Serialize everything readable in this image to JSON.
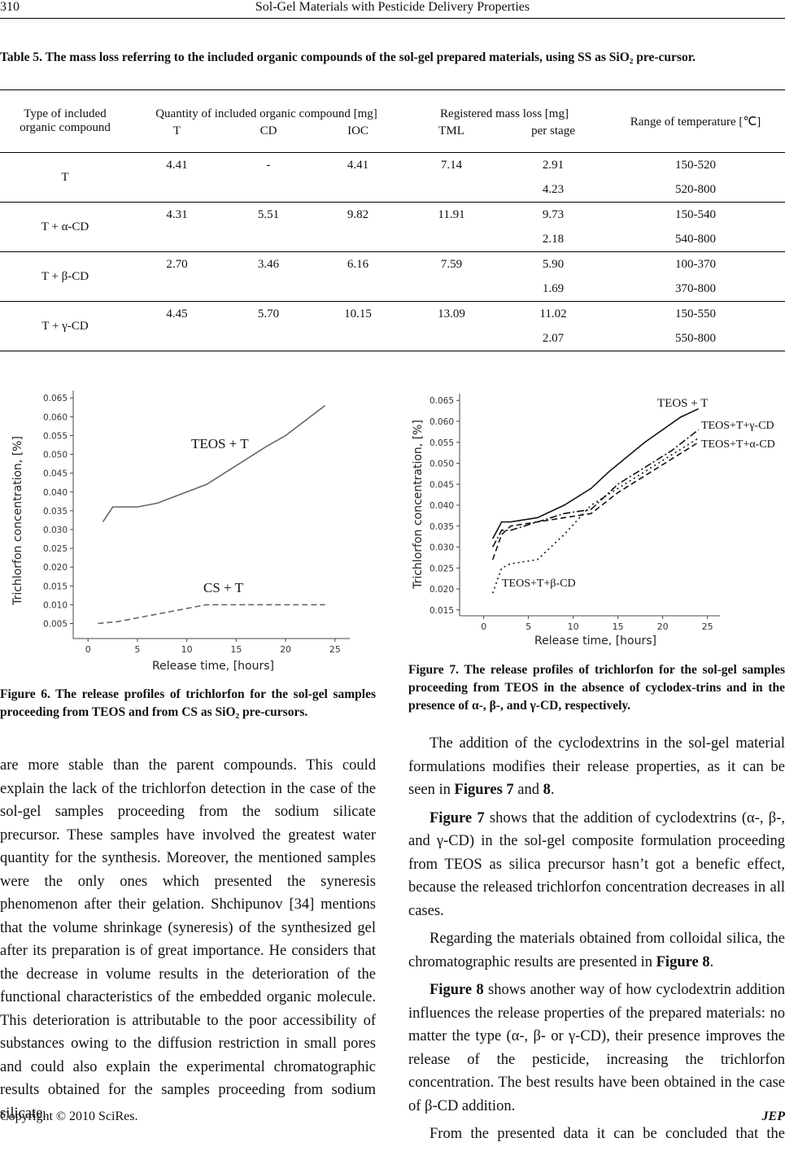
{
  "header": {
    "page_number": "310",
    "running_title": "Sol-Gel Materials with Pesticide Delivery Properties"
  },
  "table": {
    "caption": "Table 5. The mass loss referring to the included organic compounds of the sol-gel prepared materials, using SS as SiO₂ pre-cursor.",
    "header": {
      "type": "Type of included organic compound",
      "quantity": "Quantity of included organic compound [mg]",
      "mass_loss": "Registered mass loss [mg]",
      "range": "Range of temperature [℃]",
      "T": "T",
      "CD": "CD",
      "IOC": "IOC",
      "TML": "TML",
      "per_stage": "per stage"
    },
    "rows": [
      {
        "type": "T",
        "T": "4.41",
        "CD": "-",
        "IOC": "4.41",
        "TML": "7.14",
        "per_stage": [
          "2.91",
          "4.23"
        ],
        "range": [
          "150-520",
          "520-800"
        ]
      },
      {
        "type": "T + α-CD",
        "T": "4.31",
        "CD": "5.51",
        "IOC": "9.82",
        "TML": "11.91",
        "per_stage": [
          "9.73",
          "2.18"
        ],
        "range": [
          "150-540",
          "540-800"
        ]
      },
      {
        "type": "T + β-CD",
        "T": "2.70",
        "CD": "3.46",
        "IOC": "6.16",
        "TML": "7.59",
        "per_stage": [
          "5.90",
          "1.69"
        ],
        "range": [
          "100-370",
          "370-800"
        ]
      },
      {
        "type": "T + γ-CD",
        "T": "4.45",
        "CD": "5.70",
        "IOC": "10.15",
        "TML": "13.09",
        "per_stage": [
          "11.02",
          "2.07"
        ],
        "range": [
          "150-550",
          "550-800"
        ]
      }
    ]
  },
  "figure6": {
    "caption": "Figure 6. The release profiles of trichlorfon for the sol-gel samples proceeding from TEOS and from CS as SiO₂ pre-cursors.",
    "chart": {
      "type": "line",
      "x_label": "Release time, [hours]",
      "y_label": "Trichlorfon concentration, [%]",
      "xlim": [
        -1.5,
        26.5
      ],
      "ylim": [
        0.001,
        0.067
      ],
      "xticks": [
        0,
        5,
        10,
        15,
        20,
        25
      ],
      "yticks": [
        {
          "value": 0.005,
          "label": "0.005"
        },
        {
          "value": 0.01,
          "label": "0.010"
        },
        {
          "value": 0.015,
          "label": "0.015"
        },
        {
          "value": 0.02,
          "label": "0.020"
        },
        {
          "value": 0.025,
          "label": "0.025"
        },
        {
          "value": 0.03,
          "label": "0.030"
        },
        {
          "value": 0.035,
          "label": "0.035"
        },
        {
          "value": 0.04,
          "label": "0.040"
        },
        {
          "value": 0.045,
          "label": "0.045"
        },
        {
          "value": 0.05,
          "label": "0.050"
        },
        {
          "value": 0.055,
          "label": "0.055"
        },
        {
          "value": 0.06,
          "label": "0.060"
        },
        {
          "value": 0.065,
          "label": "0.065"
        }
      ],
      "series": [
        {
          "name": "TEOS + T",
          "color": "#666666",
          "dash": "solid",
          "x": [
            1.5,
            2.5,
            3,
            5,
            7,
            10,
            12,
            15,
            18,
            20,
            22,
            24
          ],
          "values": [
            0.032,
            0.036,
            0.036,
            0.036,
            0.037,
            0.04,
            0.042,
            0.047,
            0.052,
            0.055,
            0.059,
            0.063
          ]
        },
        {
          "name": "CS + T",
          "color": "#666666",
          "dash": "dashed",
          "x": [
            1,
            3,
            6,
            9,
            12,
            18,
            24
          ],
          "values": [
            0.005,
            0.0055,
            0.007,
            0.0085,
            0.01,
            0.01,
            0.01
          ]
        }
      ]
    }
  },
  "figure7": {
    "caption": "Figure 7. The release profiles of trichlorfon for the sol-gel samples proceeding from TEOS in the absence of cyclodex-trins and in the presence of α-, β-, and γ-CD, respectively.",
    "chart": {
      "type": "line",
      "x_label": "Release time, [hours]",
      "y_label": "Trichlorfon concentration, [%]",
      "xlim": [
        -2.7,
        26.4
      ],
      "ylim": [
        0.0136,
        0.0666
      ],
      "xticks": [
        0,
        5,
        10,
        15,
        20,
        25
      ],
      "yticks": [
        {
          "value": 0.015,
          "label": "0.015"
        },
        {
          "value": 0.02,
          "label": "0.020"
        },
        {
          "value": 0.025,
          "label": "0.025"
        },
        {
          "value": 0.03,
          "label": "0.030"
        },
        {
          "value": 0.035,
          "label": "0.035"
        },
        {
          "value": 0.04,
          "label": "0.040"
        },
        {
          "value": 0.045,
          "label": "0.045"
        },
        {
          "value": 0.05,
          "label": "0.050"
        },
        {
          "value": 0.055,
          "label": "0.055"
        },
        {
          "value": 0.06,
          "label": "0.060"
        },
        {
          "value": 0.065,
          "label": "0.065"
        }
      ],
      "series": [
        {
          "name": "TEOS + T",
          "color": "#111111",
          "dash": "solid",
          "x": [
            1,
            2,
            3,
            6,
            9,
            12,
            14,
            18,
            22,
            24
          ],
          "values": [
            0.032,
            0.036,
            0.036,
            0.037,
            0.04,
            0.044,
            0.048,
            0.055,
            0.061,
            0.063
          ]
        },
        {
          "name": "TEOS+T+γ-CD",
          "color": "#111111",
          "dash": "dashdot",
          "x": [
            1,
            2,
            3,
            6,
            9,
            12,
            15,
            18,
            21,
            24
          ],
          "values": [
            0.03,
            0.034,
            0.034,
            0.036,
            0.038,
            0.039,
            0.045,
            0.049,
            0.053,
            0.058
          ]
        },
        {
          "name": "TEOS+T+α-CD",
          "color": "#111111",
          "dash": "dashed",
          "x": [
            1,
            2,
            3,
            6,
            9,
            12,
            15,
            18,
            21,
            24
          ],
          "values": [
            0.027,
            0.033,
            0.035,
            0.036,
            0.037,
            0.038,
            0.043,
            0.047,
            0.051,
            0.055
          ]
        },
        {
          "name": "TEOS+T+β-CD",
          "color": "#111111",
          "dash": "dotted",
          "x": [
            1,
            2,
            3,
            6,
            9,
            12,
            15,
            18,
            21,
            24
          ],
          "values": [
            0.019,
            0.025,
            0.026,
            0.027,
            0.033,
            0.04,
            0.044,
            0.048,
            0.052,
            0.056
          ]
        }
      ]
    }
  },
  "body": {
    "left": [
      [
        "are more stable than the parent compounds. This could explain the lack of the trichlorfon detection in the case of the sol-gel samples proceeding from the sodium silicate precursor. These samples have involved the greatest water quantity for the synthesis. Moreover, the mentioned samples were the only ones which presented the syneresis phenomenon after their gelation. Shchipunov [34] mentions that the volume shrinkage (syneresis) of the synthesized gel after its preparation is of great importance. He considers that the decrease in volume results in the deterioration of the functional characteristics of the embedded organic molecule. This deterioration is attributable to the poor accessibility of substances owing to the diffusion restriction in small pores and could also explain the experimental chromatographic results obtained for the samples proceeding from sodium silicate."
      ]
    ],
    "right": [
      [
        "The addition of the cyclodextrins in the sol-gel material formulations modifies their release properties, as it can be seen in ",
        {
          "bold": "Figures 7"
        },
        " and ",
        {
          "bold": "8"
        },
        "."
      ],
      [
        {
          "bold": "Figure 7"
        },
        " shows that the addition of cyclodextrins (α-, β-, and γ-CD) in the sol-gel composite formulation proceeding from TEOS as silica precursor hasn’t got a benefic effect, because the released trichlorfon concentration decreases in all cases."
      ],
      [
        "Regarding the materials obtained from colloidal silica, the chromatographic results are presented in ",
        {
          "bold": "Figure 8"
        },
        "."
      ],
      [
        {
          "bold": "Figure 8"
        },
        " shows another way of how cyclodextrin addition influences the release properties of the prepared materials: no matter the type (α-, β- or γ-CD), their presence improves the release of the pesticide, increasing the trichlorfon concentration. The best results have been obtained in the case of β-CD addition."
      ],
      [
        "From the presented data it can be concluded that the"
      ]
    ]
  },
  "footer": {
    "copyright": "Copyright © 2010 SciRes.",
    "journal": "JEP"
  }
}
